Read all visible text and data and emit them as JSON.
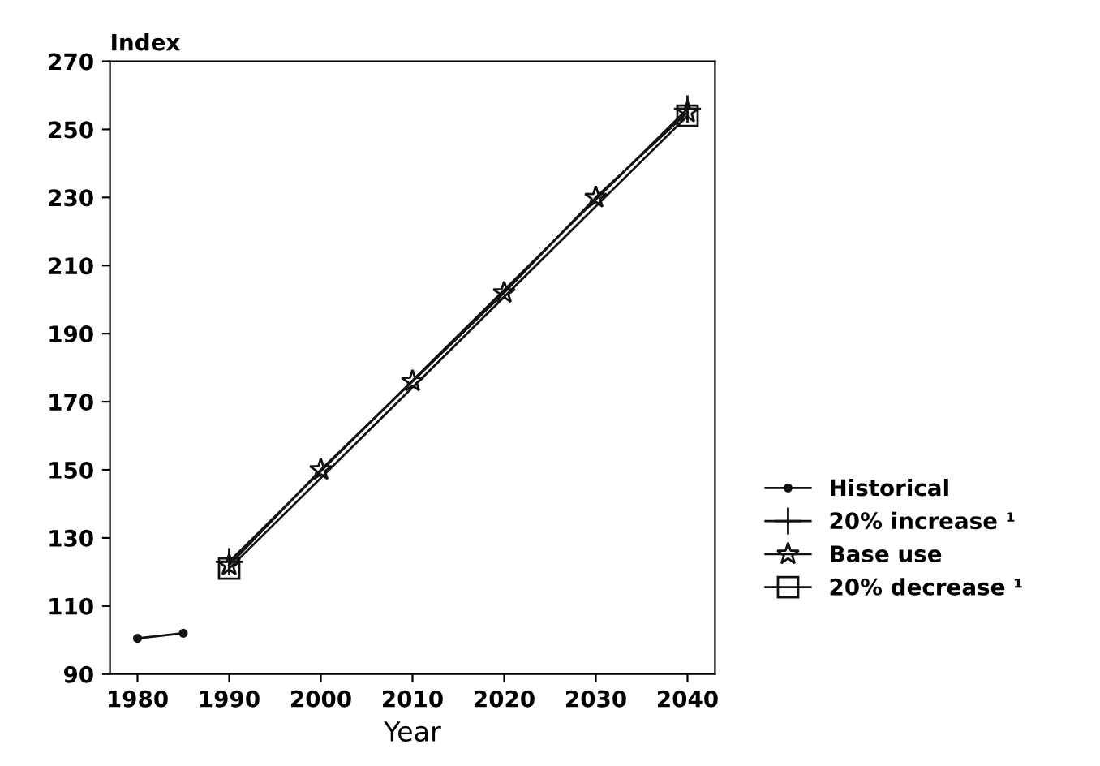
{
  "chart_data": {
    "type": "line",
    "xlabel": "Year",
    "ylabel": "Index",
    "xlim": [
      1977,
      2043
    ],
    "xticks": [
      1980,
      1990,
      2000,
      2010,
      2020,
      2030,
      2040
    ],
    "ylim": [
      90,
      270
    ],
    "yticks": [
      90,
      110,
      130,
      150,
      170,
      190,
      210,
      230,
      250,
      270
    ],
    "grid": false,
    "legend": "right",
    "series": [
      {
        "name": "Historical",
        "color": "#111111",
        "marker": "circle",
        "x": [
          1980,
          1985
        ],
        "values": [
          100.5,
          102
        ]
      },
      {
        "name": "20% increase ¹",
        "color": "#111111",
        "marker": "cross",
        "x": [
          1990,
          2040
        ],
        "values": [
          123,
          256
        ]
      },
      {
        "name": "Base use",
        "color": "#111111",
        "marker": "star",
        "x": [
          1990,
          2000,
          2010,
          2020,
          2030,
          2040
        ],
        "values": [
          122,
          150,
          176,
          202,
          230,
          255
        ]
      },
      {
        "name": "20% decrease ¹",
        "color": "#111111",
        "marker": "square",
        "x": [
          1990,
          2040
        ],
        "values": [
          121,
          254
        ]
      }
    ]
  }
}
